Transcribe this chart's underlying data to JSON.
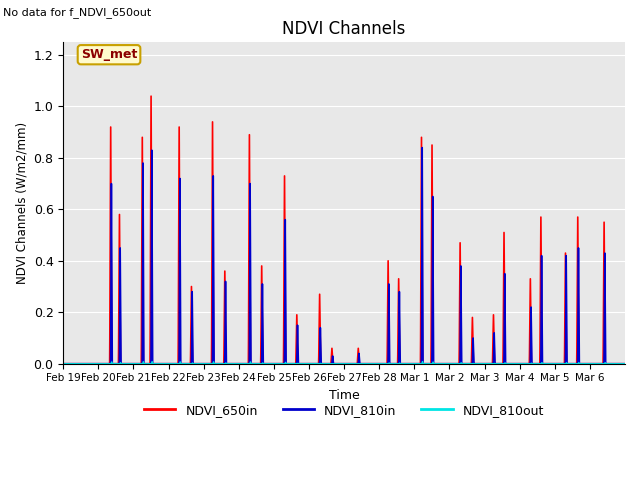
{
  "title": "NDVI Channels",
  "xlabel": "Time",
  "ylabel": "NDVI Channels (W/m2/mm)",
  "no_data_text": "No data for f_NDVI_650out",
  "box_label": "SW_met",
  "ylim": [
    0,
    1.25
  ],
  "background_color": "#e8e8e8",
  "series": {
    "NDVI_650in": {
      "color": "#ff0000",
      "lw": 1.2
    },
    "NDVI_810in": {
      "color": "#0000cc",
      "lw": 1.2
    },
    "NDVI_810out": {
      "color": "#00e5e5",
      "lw": 1.0
    }
  },
  "xtick_labels": [
    "Feb 19",
    "Feb 20",
    "Feb 21",
    "Feb 22",
    "Feb 23",
    "Feb 24",
    "Feb 25",
    "Feb 26",
    "Feb 27",
    "Feb 28",
    "Mar 1",
    "Mar 2",
    "Mar 3",
    "Mar 4",
    "Mar 5",
    "Mar 6"
  ],
  "ytick_vals": [
    0.0,
    0.2,
    0.4,
    0.6,
    0.8,
    1.0,
    1.2
  ],
  "spike_data": [
    {
      "day": 0,
      "peaks_650": [],
      "peaks_810": []
    },
    {
      "day": 1,
      "peaks_650": [
        {
          "v": 0.92,
          "f": 0.35
        },
        {
          "v": 0.58,
          "f": 0.6
        }
      ],
      "peaks_810": [
        {
          "v": 0.7,
          "f": 0.37
        },
        {
          "v": 0.45,
          "f": 0.62
        }
      ]
    },
    {
      "day": 2,
      "peaks_650": [
        {
          "v": 0.88,
          "f": 0.25
        },
        {
          "v": 1.04,
          "f": 0.5
        }
      ],
      "peaks_810": [
        {
          "v": 0.78,
          "f": 0.27
        },
        {
          "v": 0.83,
          "f": 0.52
        }
      ]
    },
    {
      "day": 3,
      "peaks_650": [
        {
          "v": 0.92,
          "f": 0.3
        },
        {
          "v": 0.3,
          "f": 0.65
        }
      ],
      "peaks_810": [
        {
          "v": 0.72,
          "f": 0.32
        },
        {
          "v": 0.28,
          "f": 0.67
        }
      ]
    },
    {
      "day": 4,
      "peaks_650": [
        {
          "v": 0.94,
          "f": 0.25
        },
        {
          "v": 0.36,
          "f": 0.6
        }
      ],
      "peaks_810": [
        {
          "v": 0.73,
          "f": 0.27
        },
        {
          "v": 0.32,
          "f": 0.62
        }
      ]
    },
    {
      "day": 5,
      "peaks_650": [
        {
          "v": 0.89,
          "f": 0.3
        },
        {
          "v": 0.38,
          "f": 0.65
        }
      ],
      "peaks_810": [
        {
          "v": 0.7,
          "f": 0.32
        },
        {
          "v": 0.31,
          "f": 0.67
        }
      ]
    },
    {
      "day": 6,
      "peaks_650": [
        {
          "v": 0.73,
          "f": 0.3
        },
        {
          "v": 0.19,
          "f": 0.65
        }
      ],
      "peaks_810": [
        {
          "v": 0.56,
          "f": 0.32
        },
        {
          "v": 0.15,
          "f": 0.67
        }
      ]
    },
    {
      "day": 7,
      "peaks_650": [
        {
          "v": 0.27,
          "f": 0.3
        },
        {
          "v": 0.06,
          "f": 0.65
        }
      ],
      "peaks_810": [
        {
          "v": 0.14,
          "f": 0.32
        },
        {
          "v": 0.03,
          "f": 0.67
        }
      ]
    },
    {
      "day": 8,
      "peaks_650": [
        {
          "v": 0.06,
          "f": 0.4
        }
      ],
      "peaks_810": [
        {
          "v": 0.04,
          "f": 0.42
        }
      ]
    },
    {
      "day": 9,
      "peaks_650": [
        {
          "v": 0.4,
          "f": 0.25
        },
        {
          "v": 0.33,
          "f": 0.55
        }
      ],
      "peaks_810": [
        {
          "v": 0.31,
          "f": 0.27
        },
        {
          "v": 0.28,
          "f": 0.57
        }
      ]
    },
    {
      "day": 10,
      "peaks_650": [
        {
          "v": 0.88,
          "f": 0.2
        },
        {
          "v": 0.85,
          "f": 0.5
        }
      ],
      "peaks_810": [
        {
          "v": 0.84,
          "f": 0.22
        },
        {
          "v": 0.65,
          "f": 0.52
        }
      ]
    },
    {
      "day": 11,
      "peaks_650": [
        {
          "v": 0.47,
          "f": 0.3
        },
        {
          "v": 0.18,
          "f": 0.65
        }
      ],
      "peaks_810": [
        {
          "v": 0.38,
          "f": 0.32
        },
        {
          "v": 0.1,
          "f": 0.67
        }
      ]
    },
    {
      "day": 12,
      "peaks_650": [
        {
          "v": 0.19,
          "f": 0.25
        },
        {
          "v": 0.51,
          "f": 0.55
        }
      ],
      "peaks_810": [
        {
          "v": 0.12,
          "f": 0.27
        },
        {
          "v": 0.35,
          "f": 0.57
        }
      ]
    },
    {
      "day": 13,
      "peaks_650": [
        {
          "v": 0.33,
          "f": 0.3
        },
        {
          "v": 0.57,
          "f": 0.6
        }
      ],
      "peaks_810": [
        {
          "v": 0.22,
          "f": 0.32
        },
        {
          "v": 0.42,
          "f": 0.62
        }
      ]
    },
    {
      "day": 14,
      "peaks_650": [
        {
          "v": 0.43,
          "f": 0.3
        },
        {
          "v": 0.57,
          "f": 0.65
        }
      ],
      "peaks_810": [
        {
          "v": 0.42,
          "f": 0.32
        },
        {
          "v": 0.45,
          "f": 0.67
        }
      ]
    },
    {
      "day": 15,
      "peaks_650": [
        {
          "v": 0.55,
          "f": 0.4
        }
      ],
      "peaks_810": [
        {
          "v": 0.43,
          "f": 0.42
        }
      ]
    }
  ]
}
